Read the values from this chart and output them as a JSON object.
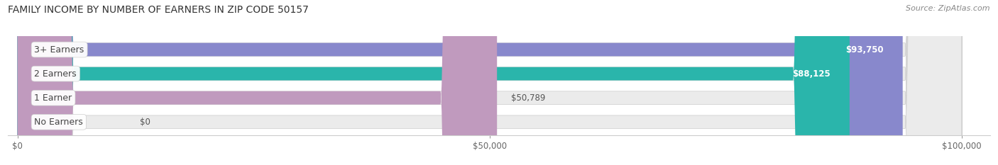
{
  "title": "FAMILY INCOME BY NUMBER OF EARNERS IN ZIP CODE 50157",
  "source": "Source: ZipAtlas.com",
  "categories": [
    "No Earners",
    "1 Earner",
    "2 Earners",
    "3+ Earners"
  ],
  "values": [
    0,
    50789,
    88125,
    93750
  ],
  "bar_colors": [
    "#a8bce0",
    "#c09abe",
    "#2ab5ab",
    "#8888cc"
  ],
  "label_text_color": [
    "#555555",
    "#555555",
    "#555555",
    "#555555"
  ],
  "value_label_colors": [
    "#555555",
    "#555555",
    "#ffffff",
    "#ffffff"
  ],
  "x_max": 100000,
  "x_ticks": [
    0,
    50000,
    100000
  ],
  "x_tick_labels": [
    "$0",
    "$50,000",
    "$100,000"
  ],
  "value_labels": [
    "$0",
    "$50,789",
    "$88,125",
    "$93,750"
  ],
  "background_color": "#ffffff",
  "bar_background_color": "#ebebeb",
  "title_fontsize": 10,
  "source_fontsize": 8,
  "label_fontsize": 9,
  "value_fontsize": 8.5,
  "tick_fontsize": 8.5
}
